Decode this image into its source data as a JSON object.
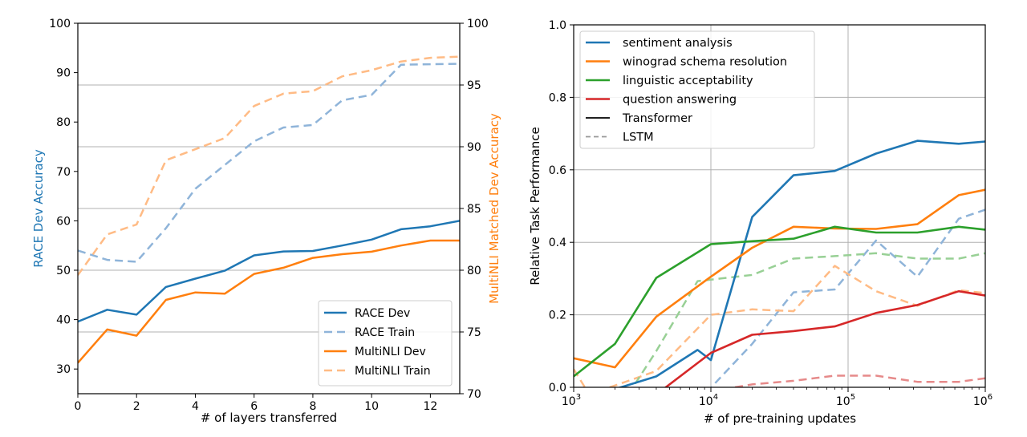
{
  "chart_data": [
    {
      "type": "line",
      "xlabel": "# of layers transferred",
      "ylabel_left": "RACE Dev Accuracy",
      "ylabel_right": "MultiNLI Matched Dev Accuracy",
      "xlim": [
        0,
        13
      ],
      "ylim_left": [
        25,
        100
      ],
      "ylim_right": [
        70,
        100
      ],
      "xticks": [
        "0",
        "2",
        "4",
        "6",
        "8",
        "10",
        "12"
      ],
      "yticks_left": [
        "30",
        "40",
        "50",
        "60",
        "70",
        "80",
        "90",
        "100"
      ],
      "yticks_right": [
        "70",
        "75",
        "80",
        "85",
        "90",
        "95",
        "100"
      ],
      "grid": "horizontal",
      "legend_position": "bottom-right",
      "colors": {
        "left_axis_label": "#1f77b4",
        "right_axis_label": "#ff7f0e"
      },
      "series": [
        {
          "name": "RACE Dev",
          "axis": "left",
          "style": "solid",
          "color": "#1f77b4",
          "x": [
            0,
            1,
            2,
            3,
            4,
            5,
            6,
            7,
            8,
            9,
            10,
            11,
            12,
            13
          ],
          "y": [
            39.6,
            42.0,
            41.0,
            46.6,
            48.3,
            49.9,
            53.0,
            53.8,
            53.9,
            55.0,
            56.2,
            58.3,
            58.9,
            60.0
          ]
        },
        {
          "name": "RACE Train",
          "axis": "left",
          "style": "dashed",
          "color": "#8fb4d9",
          "x": [
            0,
            1,
            2,
            3,
            4,
            5,
            6,
            7,
            8,
            9,
            10,
            11,
            12,
            13
          ],
          "y": [
            54.0,
            52.1,
            51.7,
            58.5,
            66.5,
            71.3,
            76.1,
            78.9,
            79.4,
            84.4,
            85.5,
            91.6,
            91.7,
            91.8
          ]
        },
        {
          "name": "MultiNLI Dev",
          "axis": "right",
          "style": "solid",
          "color": "#ff7f0e",
          "x": [
            0,
            1,
            2,
            3,
            4,
            5,
            6,
            7,
            8,
            9,
            10,
            11,
            12,
            13
          ],
          "y": [
            72.5,
            75.2,
            74.7,
            77.6,
            78.2,
            78.1,
            79.7,
            80.2,
            81.0,
            81.3,
            81.5,
            82.0,
            82.4,
            82.4
          ]
        },
        {
          "name": "MultiNLI Train",
          "axis": "right",
          "style": "dashed",
          "color": "#ffbb85",
          "x": [
            0,
            1,
            2,
            3,
            4,
            5,
            6,
            7,
            8,
            9,
            10,
            11,
            12,
            13
          ],
          "y": [
            79.6,
            82.9,
            83.7,
            88.9,
            89.8,
            90.7,
            93.3,
            94.3,
            94.5,
            95.7,
            96.2,
            96.9,
            97.2,
            97.3
          ]
        }
      ]
    },
    {
      "type": "line",
      "xlabel": "# of pre-training updates",
      "ylabel": "Relative Task Performance",
      "xscale": "log",
      "xlim": [
        1000,
        1000000
      ],
      "ylim": [
        0,
        1.0
      ],
      "xticks": [
        {
          "base": "10",
          "exp": "3",
          "value": 1000
        },
        {
          "base": "10",
          "exp": "4",
          "value": 10000
        },
        {
          "base": "10",
          "exp": "5",
          "value": 100000
        },
        {
          "base": "10",
          "exp": "6",
          "value": 1000000
        }
      ],
      "yticks": [
        "0.0",
        "0.2",
        "0.4",
        "0.6",
        "0.8",
        "1.0"
      ],
      "grid": "both",
      "legend_position": "top-left",
      "legend": [
        {
          "name": "sentiment analysis",
          "color": "#1f77b4",
          "style": "solid"
        },
        {
          "name": "winograd schema resolution",
          "color": "#ff7f0e",
          "style": "solid"
        },
        {
          "name": "linguistic acceptability",
          "color": "#2ca02c",
          "style": "solid"
        },
        {
          "name": "question answering",
          "color": "#d62728",
          "style": "solid"
        },
        {
          "name": "Transformer",
          "color": "#000000",
          "style": "solid"
        },
        {
          "name": "LSTM",
          "color": "#999999",
          "style": "dashed"
        }
      ],
      "series": [
        {
          "task": "sentiment analysis",
          "model": "Transformer",
          "color": "#1f77b4",
          "style": "solid",
          "x": [
            1000,
            2000,
            4000,
            8000,
            10000,
            20000,
            40000,
            80000,
            160000,
            320000,
            640000,
            1000000
          ],
          "y": [
            -0.05,
            -0.005,
            0.03,
            0.103,
            0.075,
            0.47,
            0.585,
            0.597,
            0.645,
            0.68,
            0.672,
            0.678
          ]
        },
        {
          "task": "winograd schema resolution",
          "model": "Transformer",
          "color": "#ff7f0e",
          "style": "solid",
          "x": [
            1000,
            2000,
            4000,
            10000,
            20000,
            40000,
            80000,
            160000,
            320000,
            640000,
            1000000
          ],
          "y": [
            0.08,
            0.055,
            0.195,
            0.305,
            0.385,
            0.443,
            0.438,
            0.437,
            0.45,
            0.53,
            0.545
          ]
        },
        {
          "task": "linguistic acceptability",
          "model": "Transformer",
          "color": "#2ca02c",
          "style": "solid",
          "x": [
            1000,
            2000,
            4000,
            10000,
            20000,
            40000,
            80000,
            160000,
            320000,
            640000,
            1000000
          ],
          "y": [
            0.03,
            0.12,
            0.302,
            0.395,
            0.403,
            0.41,
            0.443,
            0.427,
            0.427,
            0.443,
            0.435
          ]
        },
        {
          "task": "question answering",
          "model": "Transformer",
          "color": "#d62728",
          "style": "solid",
          "x": [
            4000,
            10000,
            20000,
            40000,
            80000,
            160000,
            320000,
            640000,
            1000000
          ],
          "y": [
            -0.02,
            0.095,
            0.145,
            0.155,
            0.168,
            0.205,
            0.227,
            0.265,
            0.253
          ]
        },
        {
          "task": "sentiment analysis",
          "model": "LSTM",
          "color": "#8fb4d9",
          "style": "dashed",
          "x": [
            8000,
            20000,
            40000,
            80000,
            160000,
            320000,
            640000,
            1000000
          ],
          "y": [
            -0.04,
            0.12,
            0.262,
            0.27,
            0.405,
            0.305,
            0.465,
            0.49
          ]
        },
        {
          "task": "winograd schema resolution",
          "model": "LSTM",
          "color": "#ffbb85",
          "style": "dashed",
          "x": [
            1000,
            1300,
            4000,
            10000,
            20000,
            40000,
            80000,
            160000,
            320000,
            640000,
            1000000
          ],
          "y": [
            0.05,
            -0.02,
            0.045,
            0.2,
            0.215,
            0.21,
            0.335,
            0.265,
            0.225,
            0.268,
            0.26
          ]
        },
        {
          "task": "linguistic acceptability",
          "model": "LSTM",
          "color": "#98d095",
          "style": "dashed",
          "x": [
            2500,
            4000,
            8000,
            20000,
            40000,
            80000,
            160000,
            320000,
            640000,
            1000000
          ],
          "y": [
            -0.02,
            0.1,
            0.293,
            0.31,
            0.355,
            0.362,
            0.37,
            0.355,
            0.355,
            0.37
          ]
        },
        {
          "task": "question answering",
          "model": "LSTM",
          "color": "#e68a8a",
          "style": "dashed",
          "x": [
            15000,
            20000,
            40000,
            80000,
            160000,
            320000,
            640000,
            1000000
          ],
          "y": [
            0.0,
            0.008,
            0.018,
            0.032,
            0.032,
            0.015,
            0.015,
            0.025
          ]
        }
      ]
    }
  ]
}
